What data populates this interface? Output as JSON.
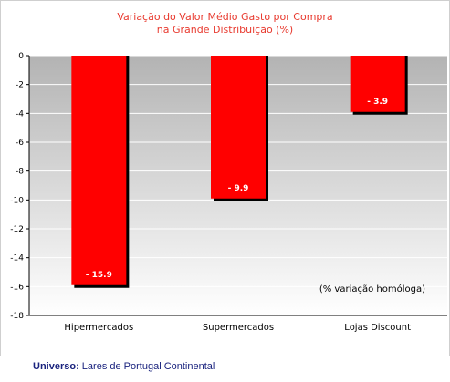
{
  "chart_data": {
    "type": "bar",
    "title_lines": [
      "Variação do Valor Médio Gasto por Compra",
      "na Grande Distribuição (%)"
    ],
    "categories": [
      "Hipermercados",
      "Supermercados",
      "Lojas Discount"
    ],
    "values": [
      -15.9,
      -9.9,
      -3.9
    ],
    "data_labels": [
      "- 15.9",
      "- 9.9",
      "- 3.9"
    ],
    "yticks": [
      0,
      -2,
      -4,
      -6,
      -8,
      -10,
      -12,
      -14,
      -16,
      -18
    ],
    "ylim": [
      -18,
      0
    ],
    "annotation": "(% variação homóloga)",
    "colors": {
      "bar": "#ff0000",
      "bar_shadow": "#000000",
      "title": "#e8392e"
    }
  },
  "footer": {
    "label": "Universo:",
    "text": " Lares de Portugal Continental"
  }
}
